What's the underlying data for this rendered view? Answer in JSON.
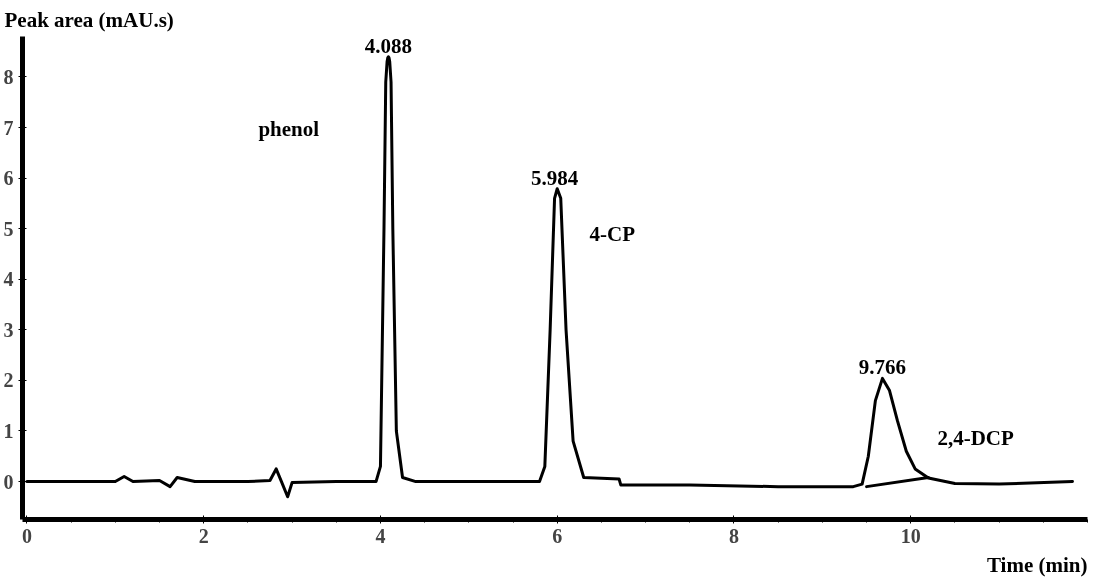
{
  "chart_data": {
    "type": "line",
    "xlabel": "Time (min)",
    "ylabel": "Peak area (mAU.s)",
    "xlim": [
      -0.05,
      12
    ],
    "ylim": [
      -0.75,
      8.8
    ],
    "xticks": [
      0,
      2,
      4,
      6,
      8,
      10
    ],
    "yticks": [
      0,
      1,
      2,
      3,
      4,
      5,
      6,
      7,
      8
    ],
    "grid": false,
    "marker": "none",
    "line_style": "solid",
    "series": [
      {
        "color": "#000000",
        "x": [
          0,
          0.5,
          1.0,
          1.1,
          1.2,
          1.5,
          1.62,
          1.7,
          1.9,
          2.5,
          2.75,
          2.82,
          2.88,
          2.95,
          3.0,
          3.5,
          3.95,
          4.0,
          4.04,
          4.06,
          4.075,
          4.083,
          4.09,
          4.097,
          4.105,
          4.12,
          4.14,
          4.18,
          4.25,
          4.4,
          5.0,
          5.8,
          5.86,
          5.92,
          5.97,
          6.0,
          6.04,
          6.1,
          6.18,
          6.3,
          6.7,
          6.72,
          7.5,
          8.5,
          9.35,
          9.45,
          9.52,
          9.6,
          9.68,
          9.76,
          9.85,
          9.95,
          10.05,
          10.2,
          10.5,
          11.0,
          11.83
        ],
        "values": [
          0,
          0,
          0,
          0.1,
          0,
          0.02,
          -0.1,
          0.08,
          0,
          0,
          0.02,
          0.25,
          0,
          -0.3,
          -0.02,
          0,
          0,
          0.3,
          5,
          7.9,
          8.3,
          8.38,
          8.4,
          8.38,
          8.3,
          7.9,
          5,
          1,
          0.08,
          0,
          0,
          0,
          0.3,
          3,
          5.6,
          5.79,
          5.6,
          3,
          0.8,
          0.08,
          0.05,
          -0.07,
          -0.07,
          -0.1,
          -0.1,
          -0.05,
          0.5,
          1.6,
          2.04,
          1.8,
          1.2,
          0.6,
          0.25,
          0.07,
          -0.04,
          -0.05,
          0.0
        ]
      },
      {
        "color": "#000000",
        "x": [
          9.5,
          10.2
        ],
        "values": [
          -0.1,
          0.08
        ]
      }
    ],
    "annotations": [
      {
        "text": "4.088",
        "x": 4.09,
        "y": 8.4
      },
      "phenol",
      {
        "text": "5.984",
        "x": 5.97,
        "y": 5.79
      },
      "4-CP",
      {
        "text": "9.766",
        "x": 9.68,
        "y": 2.04
      },
      "2,4-DCP"
    ]
  }
}
